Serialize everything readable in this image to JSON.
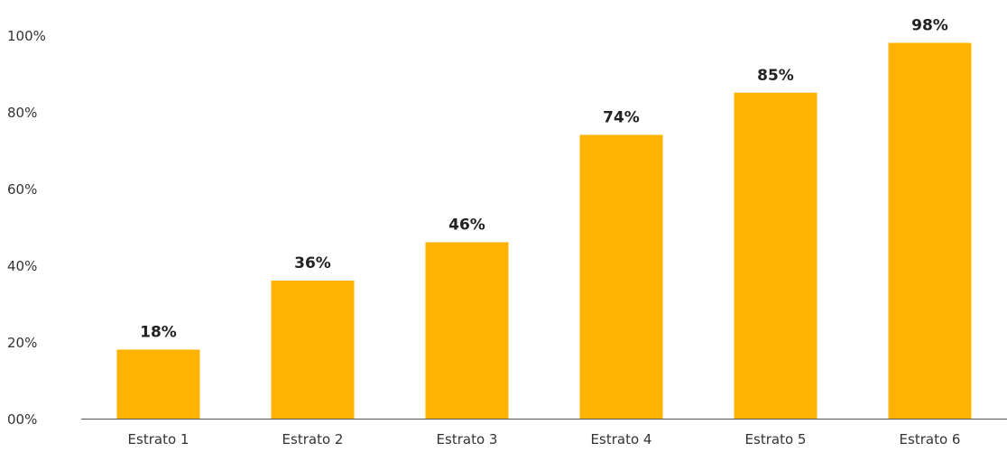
{
  "colors": {
    "bar": "#FDB300",
    "axis": "#555555"
  },
  "chart_data": {
    "type": "bar",
    "title": "",
    "xlabel": "",
    "ylabel": "",
    "categories": [
      "Estrato 1",
      "Estrato 2",
      "Estrato 3",
      "Estrato 4",
      "Estrato 5",
      "Estrato 6"
    ],
    "values": [
      18,
      36,
      46,
      74,
      85,
      98
    ],
    "value_labels": [
      "18%",
      "36%",
      "46%",
      "74%",
      "85%",
      "98%"
    ],
    "ylim": [
      0,
      100
    ],
    "yticks": [
      0,
      20,
      40,
      60,
      80,
      100
    ],
    "ytick_labels": [
      "00%",
      "20%",
      "40%",
      "60%",
      "80%",
      "100%"
    ],
    "grid": false,
    "legend": "none"
  }
}
